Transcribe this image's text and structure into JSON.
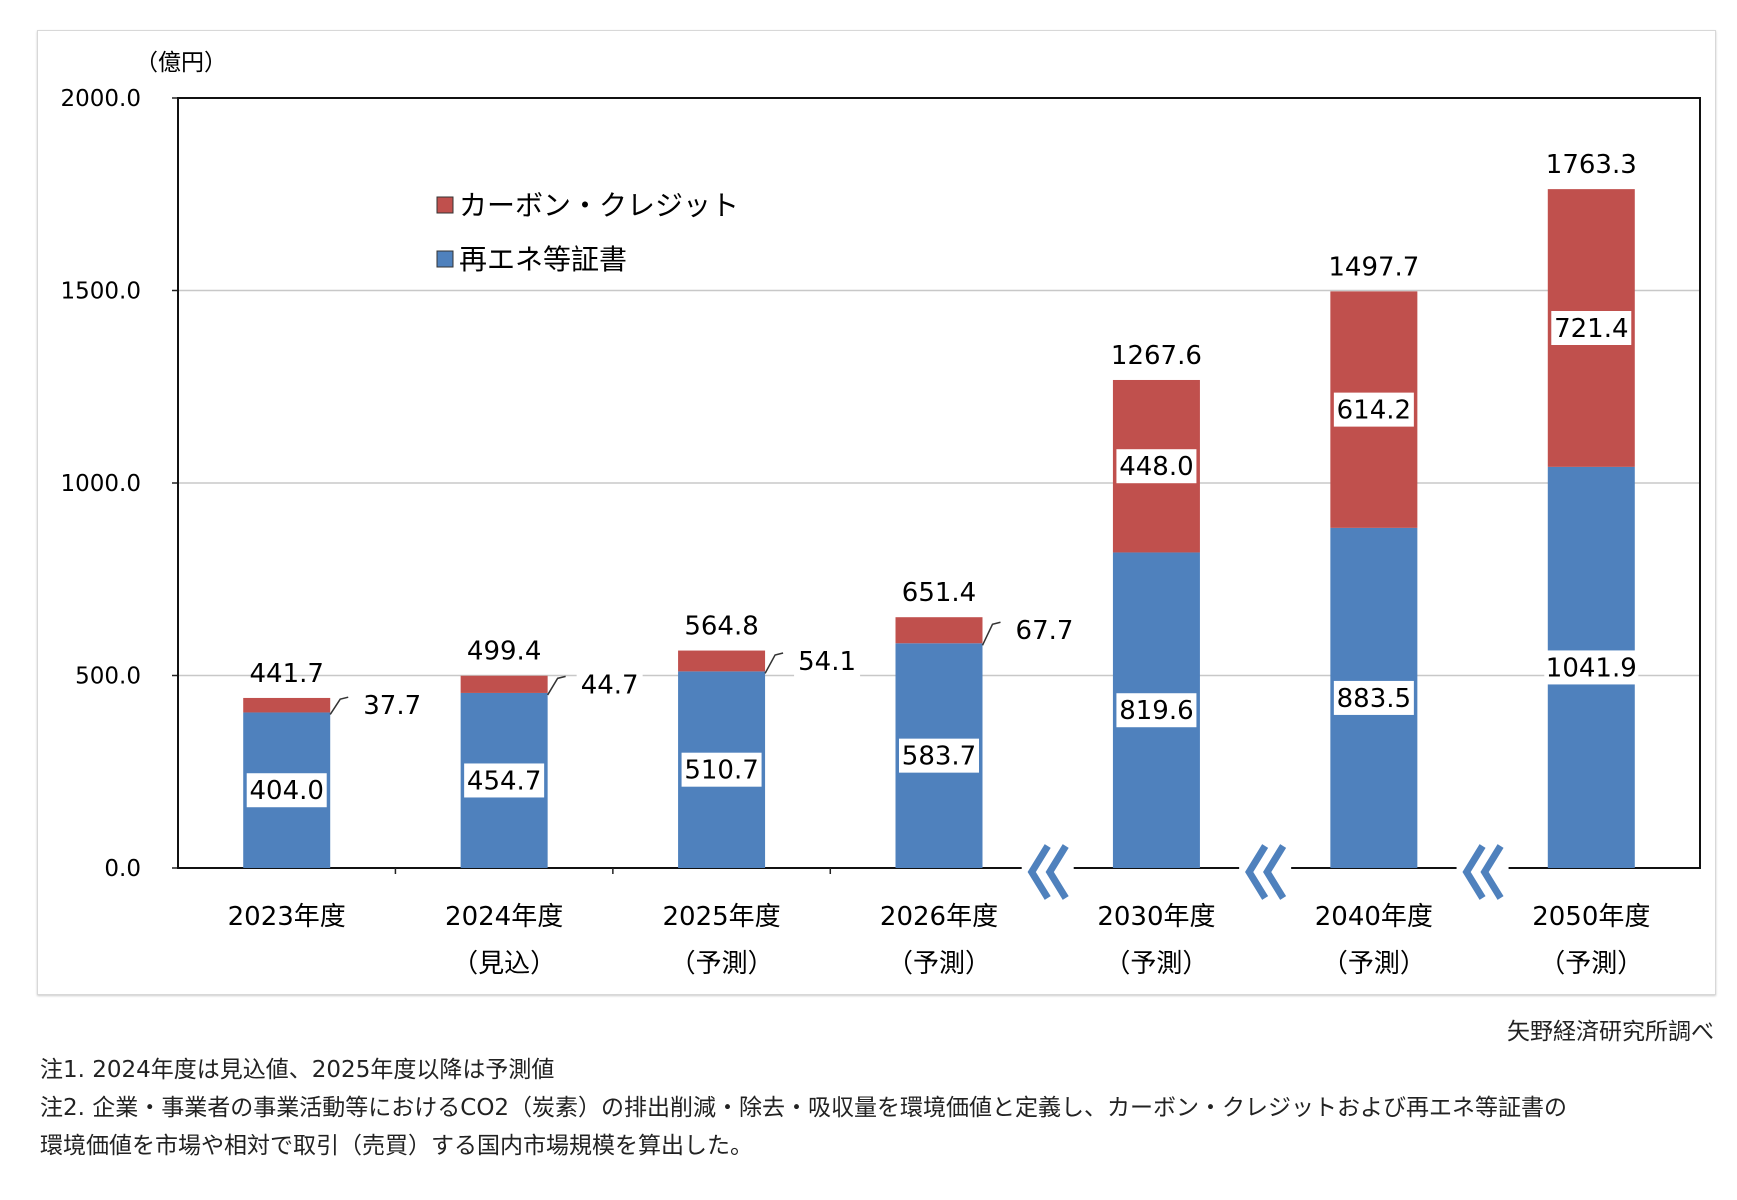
{
  "chart_data": {
    "type": "bar",
    "stacked": true,
    "yunit": "（億円）",
    "ylim": [
      0,
      2000
    ],
    "yticks": [
      "0.0",
      "500.0",
      "1000.0",
      "1500.0",
      "2000.0"
    ],
    "grid": true,
    "legend_placement": "top-left",
    "categories": [
      [
        "2023年度",
        ""
      ],
      [
        "2024年度",
        "（見込）"
      ],
      [
        "2025年度",
        "（予測）"
      ],
      [
        "2026年度",
        "（予測）"
      ],
      [
        "2030年度",
        "（予測）"
      ],
      [
        "2040年度",
        "（予測）"
      ],
      [
        "2050年度",
        "（予測）"
      ]
    ],
    "axis_breaks_before": [
      "2030年度",
      "2040年度",
      "2050年度"
    ],
    "series": [
      {
        "name": "再エネ等証書",
        "color": "#4F81BD",
        "values": [
          404.0,
          454.7,
          510.7,
          583.7,
          819.6,
          883.5,
          1041.9
        ]
      },
      {
        "name": "カーボン・クレジット",
        "color": "#C0504D",
        "values": [
          37.7,
          44.7,
          54.1,
          67.7,
          448.0,
          614.2,
          721.4
        ]
      }
    ],
    "totals": [
      441.7,
      499.4,
      564.8,
      651.4,
      1267.6,
      1497.7,
      1763.3
    ]
  },
  "source": "矢野経済研究所調べ",
  "notes": [
    "注1.  2024年度は見込値、2025年度以降は予測値",
    "注2.  企業・事業者の事業活動等におけるCO2（炭素）の排出削減・除去・吸収量を環境価値と定義し、カーボン・クレジットおよび再エネ等証書の",
    "環境価値を市場や相対で取引（売買）する国内市場規模を算出した。"
  ]
}
